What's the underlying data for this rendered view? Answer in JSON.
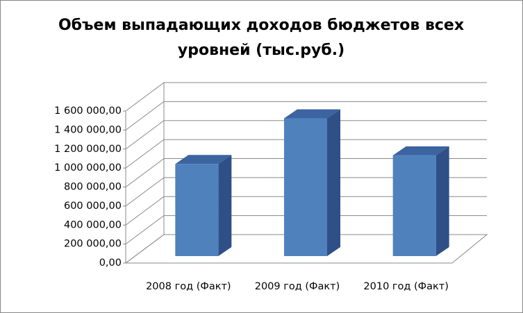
{
  "chart_data": {
    "type": "bar3d",
    "title": "Объем выпадающих доходов бюджетов всех уровней (тыс.руб.)",
    "categories": [
      "2008 год (Факт)",
      "2009 год  (Факт)",
      "2010 год  (Факт)"
    ],
    "values": [
      970000,
      1450000,
      1060000
    ],
    "color": "#4f81bd",
    "ylim": [
      0,
      1600000
    ],
    "yticks": [
      {
        "value": 0,
        "label": "0,00"
      },
      {
        "value": 200000,
        "label": "200 000,00"
      },
      {
        "value": 400000,
        "label": "400 000,00"
      },
      {
        "value": 600000,
        "label": "600 000,00"
      },
      {
        "value": 800000,
        "label": "800 000,00"
      },
      {
        "value": 1000000,
        "label": "1 000 000,00"
      },
      {
        "value": 1200000,
        "label": "1 200 000,00"
      },
      {
        "value": 1400000,
        "label": "1 400 000,00"
      },
      {
        "value": 1600000,
        "label": "1 600 000,00"
      }
    ],
    "grid": true
  }
}
